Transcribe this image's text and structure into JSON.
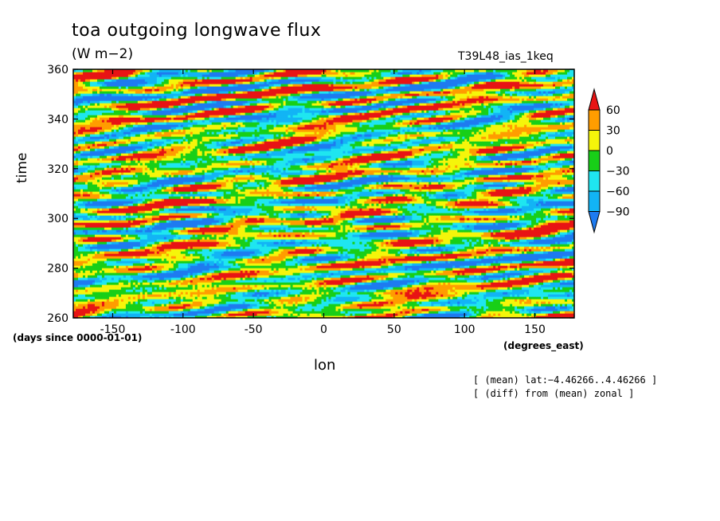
{
  "chart_data": {
    "type": "heatmap",
    "title": "toa outgoing longwave flux",
    "units": "(W m−2)",
    "run_name": "T39L48_ias_1keq",
    "xlabel": "lon",
    "ylabel": "time",
    "x_units": "(degrees_east)",
    "y_units": "(days since 0000-01-01)",
    "xlim": [
      -178,
      178
    ],
    "ylim": [
      260,
      360
    ],
    "x_ticks": [
      "-150",
      "-100",
      "-50",
      "0",
      "50",
      "100",
      "150"
    ],
    "x_tick_values": [
      -150,
      -100,
      -50,
      0,
      50,
      100,
      150
    ],
    "y_ticks": [
      "260",
      "280",
      "300",
      "320",
      "340",
      "360"
    ],
    "y_tick_values": [
      260,
      280,
      300,
      320,
      340,
      360
    ],
    "colorbar": {
      "levels": [
        "60",
        "30",
        "0",
        "−30",
        "−60",
        "−90"
      ],
      "level_values": [
        60,
        30,
        0,
        -30,
        -60,
        -90
      ],
      "colors_low_to_high": [
        "#1e7bf0",
        "#12b4f5",
        "#1fe6f0",
        "#18cf18",
        "#f5f50a",
        "#ff9d00",
        "#e81414"
      ],
      "extend": "both"
    },
    "notes": [
      "[ (mean) lat:−4.46266..4.46266 ]",
      "[ (diff) from (mean) zonal ]"
    ],
    "field_description": "eastward-propagating anomaly bands tilted up to the right; values roughly −90 to 60"
  }
}
